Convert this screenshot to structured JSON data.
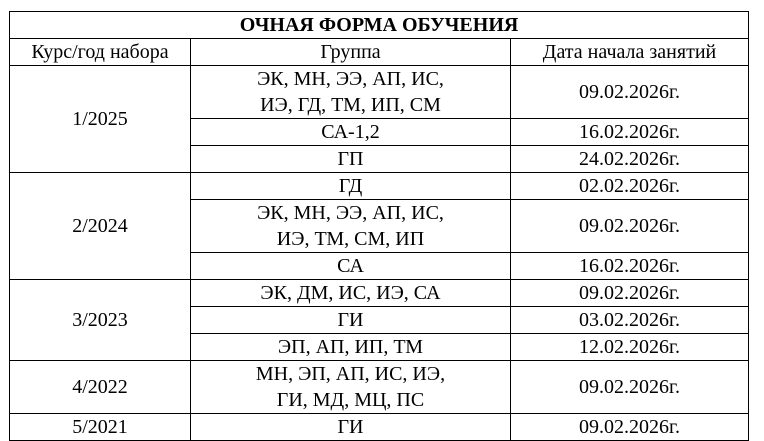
{
  "title": "ОЧНАЯ ФОРМА ОБУЧЕНИЯ",
  "headers": [
    "Курс/год набора",
    "Группа",
    "Дата начала занятий"
  ],
  "courses": [
    {
      "course": "1/2025",
      "rows": [
        {
          "group": [
            "ЭК, МН, ЭЭ, АП, ИС,",
            "ИЭ, ГД, ТМ, ИП, СМ"
          ],
          "date": "09.02.2026г."
        },
        {
          "group": [
            "СА-1,2"
          ],
          "date": "16.02.2026г."
        },
        {
          "group": [
            "ГП"
          ],
          "date": "24.02.2026г."
        }
      ]
    },
    {
      "course": "2/2024",
      "rows": [
        {
          "group": [
            "ГД"
          ],
          "date": "02.02.2026г."
        },
        {
          "group": [
            "ЭК, МН, ЭЭ, АП, ИС,",
            "ИЭ, ТМ, СМ, ИП"
          ],
          "date": "09.02.2026г."
        },
        {
          "group": [
            "СА"
          ],
          "date": "16.02.2026г."
        }
      ]
    },
    {
      "course": "3/2023",
      "rows": [
        {
          "group": [
            "ЭК, ДМ, ИС, ИЭ, СА"
          ],
          "date": "09.02.2026г."
        },
        {
          "group": [
            "ГИ"
          ],
          "date": "03.02.2026г."
        },
        {
          "group": [
            "ЭП, АП, ИП, ТМ"
          ],
          "date": "12.02.2026г."
        }
      ]
    },
    {
      "course": "4/2022",
      "rows": [
        {
          "group": [
            "МН, ЭП, АП, ИС, ИЭ,",
            "ГИ, МД, МЦ, ПС"
          ],
          "date": "09.02.2026г."
        }
      ]
    },
    {
      "course": "5/2021",
      "rows": [
        {
          "group": [
            "ГИ"
          ],
          "date": "09.02.2026г."
        }
      ]
    }
  ]
}
